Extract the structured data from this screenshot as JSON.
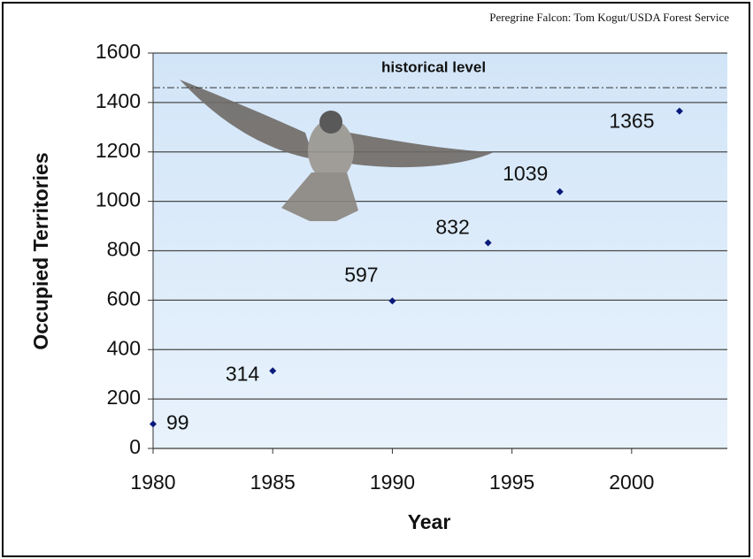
{
  "chart_data": {
    "type": "scatter",
    "source": "Peregrine Falcon: Tom Kogut/USDA Forest Service",
    "xlabel": "Year",
    "ylabel": "Occupied Territories",
    "x": [
      1980,
      1985,
      1990,
      1994,
      1997,
      2002
    ],
    "values": [
      99,
      314,
      597,
      832,
      1039,
      1365
    ],
    "color": "#0a1a7a",
    "xlim": [
      1980,
      2004
    ],
    "xticks": [
      1980,
      1985,
      1990,
      1995,
      2000
    ],
    "ylim": [
      0,
      1600
    ],
    "yticks": [
      0,
      200,
      400,
      600,
      800,
      1000,
      1200,
      1400,
      1600
    ],
    "grid": true,
    "reference_line": {
      "label": "historical level",
      "value": 1460
    }
  }
}
